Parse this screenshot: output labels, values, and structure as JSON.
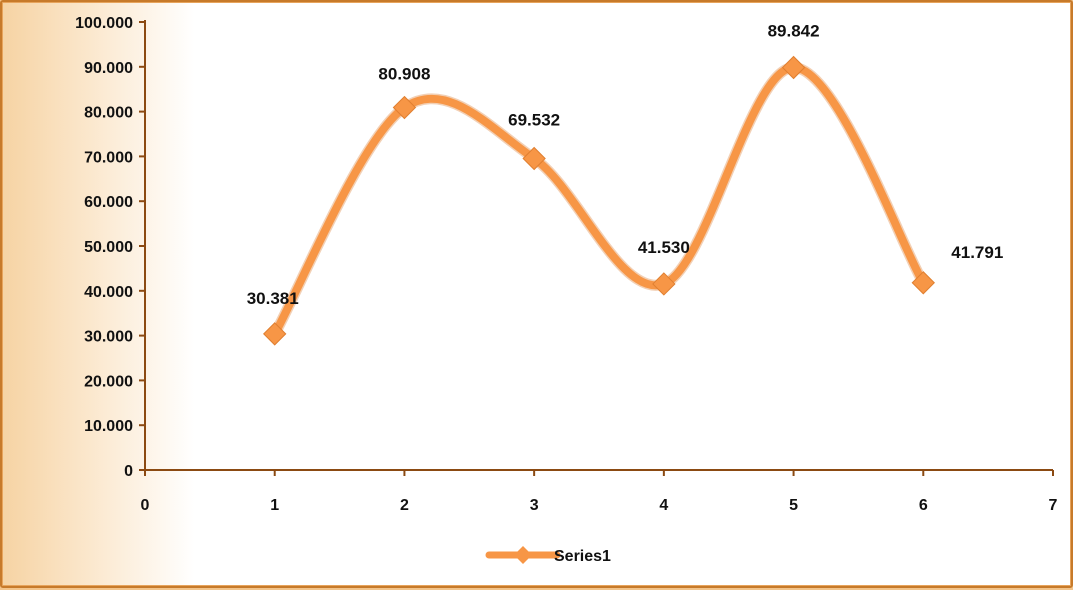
{
  "chart_data": {
    "type": "line",
    "smooth": true,
    "title": "",
    "xlabel": "",
    "ylabel": "",
    "xlim": [
      0,
      7
    ],
    "ylim": [
      0,
      100
    ],
    "x_ticks": [
      "0",
      "1",
      "2",
      "3",
      "4",
      "5",
      "6",
      "7"
    ],
    "y_ticks": [
      "0",
      "10.000",
      "20.000",
      "30.000",
      "40.000",
      "50.000",
      "60.000",
      "70.000",
      "80.000",
      "90.000",
      "100.000"
    ],
    "series": [
      {
        "name": "Series1",
        "color": "#f79646",
        "marker": "diamond",
        "x": [
          1,
          2,
          3,
          4,
          5,
          6
        ],
        "values": [
          30.381,
          80.908,
          69.532,
          41.53,
          89.842,
          41.791
        ],
        "data_labels": [
          "30.381",
          "80.908",
          "69.532",
          "41.530",
          "89.842",
          "41.791"
        ]
      }
    ],
    "grid": false,
    "legend": {
      "position": "bottom",
      "entries": [
        "Series1"
      ]
    },
    "axis_color": "#8b4a12"
  }
}
